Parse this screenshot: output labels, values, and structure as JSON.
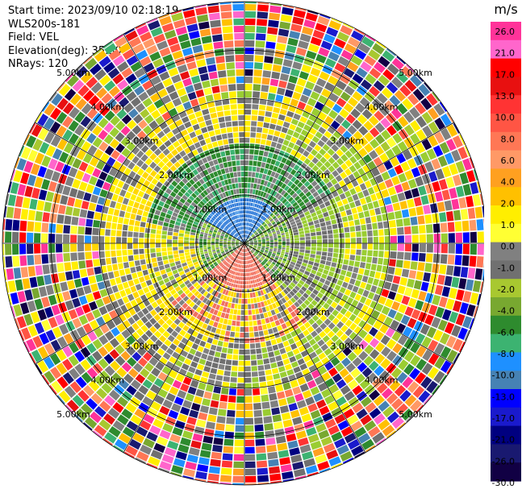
{
  "plot": {
    "start_time": "Start time: 2023/09/10 02:18:19",
    "site": "WLS200s-181",
    "field": "Field: VEL",
    "elevation": "Elevation(deg): 35.30",
    "nrays": "NRays: 120"
  },
  "chart_data": {
    "type": "heatmap",
    "projection": "polar-ppi",
    "n_rays": 120,
    "range_rings_km": [
      1.0,
      2.0,
      3.0,
      4.0,
      5.0
    ],
    "range_ring_labels": [
      "1.00km",
      "2.00km",
      "3.00km",
      "4.00km",
      "5.00km"
    ],
    "colorbar": {
      "unit": "m/s",
      "ticks": [
        "26.0",
        "21.0",
        "17.0",
        "13.0",
        "10.0",
        "8.0",
        "6.0",
        "4.0",
        "2.0",
        "1.0",
        "0.0",
        "-1.0",
        "-2.0",
        "-4.0",
        "-6.0",
        "-8.0",
        "-10.0",
        "-13.0",
        "-17.0",
        "-21.0",
        "-26.0",
        "-30.0"
      ],
      "colors": [
        "#ff3399",
        "#ff66cc",
        "#ff0000",
        "#e81010",
        "#ff3333",
        "#ff5544",
        "#ff7755",
        "#ff9966",
        "#ffa020",
        "#ffc000",
        "#ffee00",
        "#ffff33",
        "#808080",
        "#707070",
        "#a8c830",
        "#78a830",
        "#2e8b2e",
        "#3cb371",
        "#1e90ff",
        "#4682b4",
        "#0000ff",
        "#1a1acd",
        "#000080",
        "#191970",
        "#110044"
      ]
    },
    "near_field": {
      "towards_inner_color": "#2a78d8",
      "away_inner_color": "#f07060"
    }
  }
}
